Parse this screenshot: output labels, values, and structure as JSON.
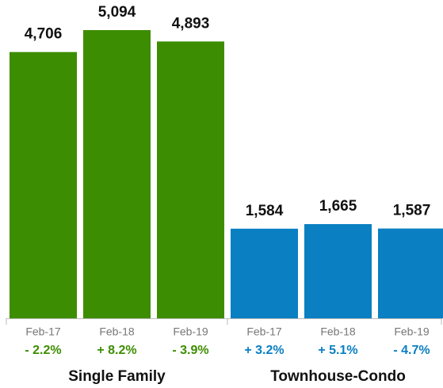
{
  "chart_data": {
    "type": "bar",
    "categories": [
      "Feb-17",
      "Feb-18",
      "Feb-19"
    ],
    "series": [
      {
        "name": "Single Family",
        "color": "#3d8d02",
        "values": [
          4706,
          5094,
          4893
        ],
        "value_labels": [
          "4,706",
          "5,094",
          "4,893"
        ],
        "change_labels": [
          "- 2.2%",
          "+ 8.2%",
          "- 3.9%"
        ]
      },
      {
        "name": "Townhouse-Condo",
        "color": "#0a7fc2",
        "values": [
          1584,
          1665,
          1587
        ],
        "value_labels": [
          "1,584",
          "1,665",
          "1,587"
        ],
        "change_labels": [
          "+ 3.2%",
          "+ 5.1%",
          "- 4.7%"
        ]
      }
    ]
  }
}
